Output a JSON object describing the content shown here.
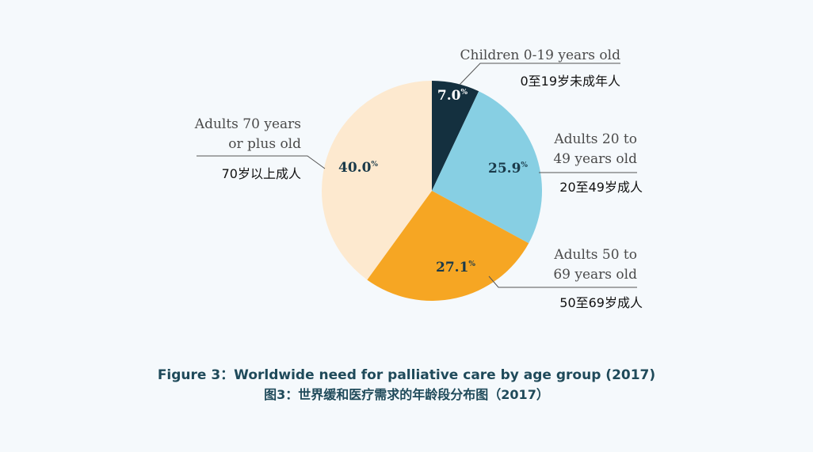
{
  "chart_data": {
    "type": "pie",
    "title": "Figure 3：Worldwide need for palliative care by age group (2017)",
    "subtitle": "图3：世界缓和医疗需求的年龄段分布图（2017）",
    "percent_suffix": "%",
    "slices": [
      {
        "value": 7.0,
        "display": "7.0",
        "label_en": [
          "Children 0-19 years old"
        ],
        "label_zh": "0至19岁未成年人",
        "color": "#14303f",
        "text_color": "#ffffff"
      },
      {
        "value": 25.9,
        "display": "25.9",
        "label_en": [
          "Adults 20 to",
          "49 years old"
        ],
        "label_zh": "20至49岁成人",
        "color": "#87cfe3",
        "text_color": "#1a3a4a"
      },
      {
        "value": 27.1,
        "display": "27.1",
        "label_en": [
          "Adults 50 to",
          "69 years old"
        ],
        "label_zh": "50至69岁成人",
        "color": "#f6a623",
        "text_color": "#1a3a4a"
      },
      {
        "value": 40.0,
        "display": "40.0",
        "label_en": [
          "Adults 70 years",
          "or plus old"
        ],
        "label_zh": "70岁以上成人",
        "color": "#fde9cf",
        "text_color": "#1a3a4a"
      }
    ]
  }
}
